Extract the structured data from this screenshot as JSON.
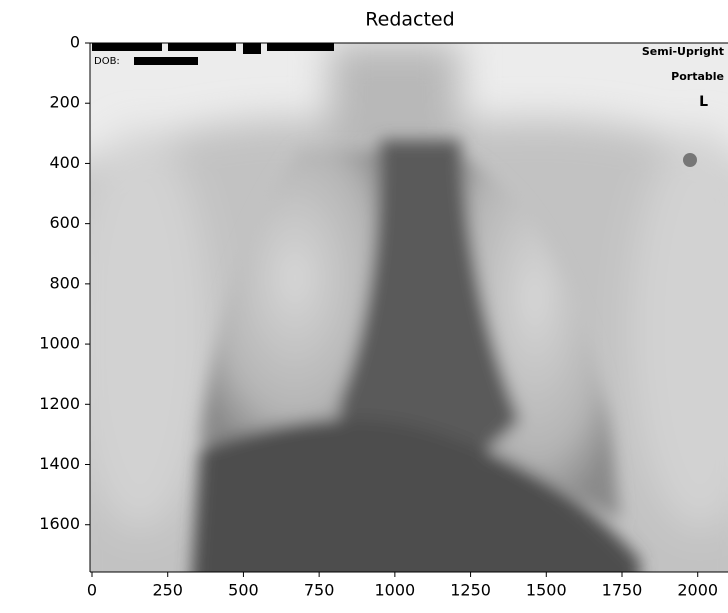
{
  "chart_data": {
    "type": "image",
    "title": "Redacted",
    "xlim": [
      0,
      2100
    ],
    "ylim": [
      1757,
      0
    ],
    "xticks": [
      0,
      250,
      500,
      750,
      1000,
      1250,
      1500,
      1750,
      2000
    ],
    "yticks": [
      0,
      200,
      400,
      600,
      800,
      1000,
      1200,
      1400,
      1600
    ],
    "annotations": [
      "DOB:",
      "Semi-Upright",
      "Portable",
      "L"
    ]
  }
}
